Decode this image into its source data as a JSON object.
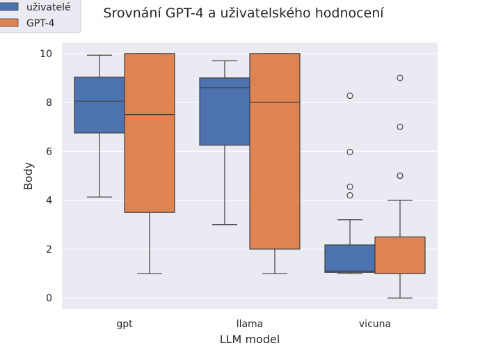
{
  "chart_data": {
    "type": "box",
    "title": "Srovnání GPT-4 a uživatelského hodnocení",
    "xlabel": "LLM model",
    "ylabel": "Body",
    "categories": [
      "gpt",
      "llama",
      "vicuna"
    ],
    "ylim": [
      -0.45,
      10.45
    ],
    "yticks": [
      0,
      2,
      4,
      6,
      8,
      10
    ],
    "grid": true,
    "legend_position": "top-left",
    "series": [
      {
        "name": "uživatelé",
        "color": "#4c72b0",
        "boxes": [
          {
            "whisker_low": 4.13,
            "q1": 6.75,
            "median": 8.05,
            "q3": 9.03,
            "whisker_high": 9.93,
            "outliers": []
          },
          {
            "whisker_low": 3.0,
            "q1": 6.25,
            "median": 8.6,
            "q3": 9.0,
            "whisker_high": 9.7,
            "outliers": []
          },
          {
            "whisker_low": 1.0,
            "q1": 1.05,
            "median": 1.1,
            "q3": 2.17,
            "whisker_high": 3.2,
            "outliers": [
              4.2,
              4.55,
              5.97,
              8.27
            ]
          }
        ]
      },
      {
        "name": "GPT-4",
        "color": "#dd8452",
        "boxes": [
          {
            "whisker_low": 1.0,
            "q1": 3.5,
            "median": 7.5,
            "q3": 10.0,
            "whisker_high": 10.0,
            "outliers": []
          },
          {
            "whisker_low": 1.0,
            "q1": 2.0,
            "median": 8.0,
            "q3": 10.0,
            "whisker_high": 10.0,
            "outliers": []
          },
          {
            "whisker_low": 0.0,
            "q1": 1.0,
            "median": 1.0,
            "q3": 2.5,
            "whisker_high": 4.0,
            "outliers": [
              5.0,
              5.0,
              7.0,
              9.0
            ]
          }
        ]
      }
    ]
  }
}
